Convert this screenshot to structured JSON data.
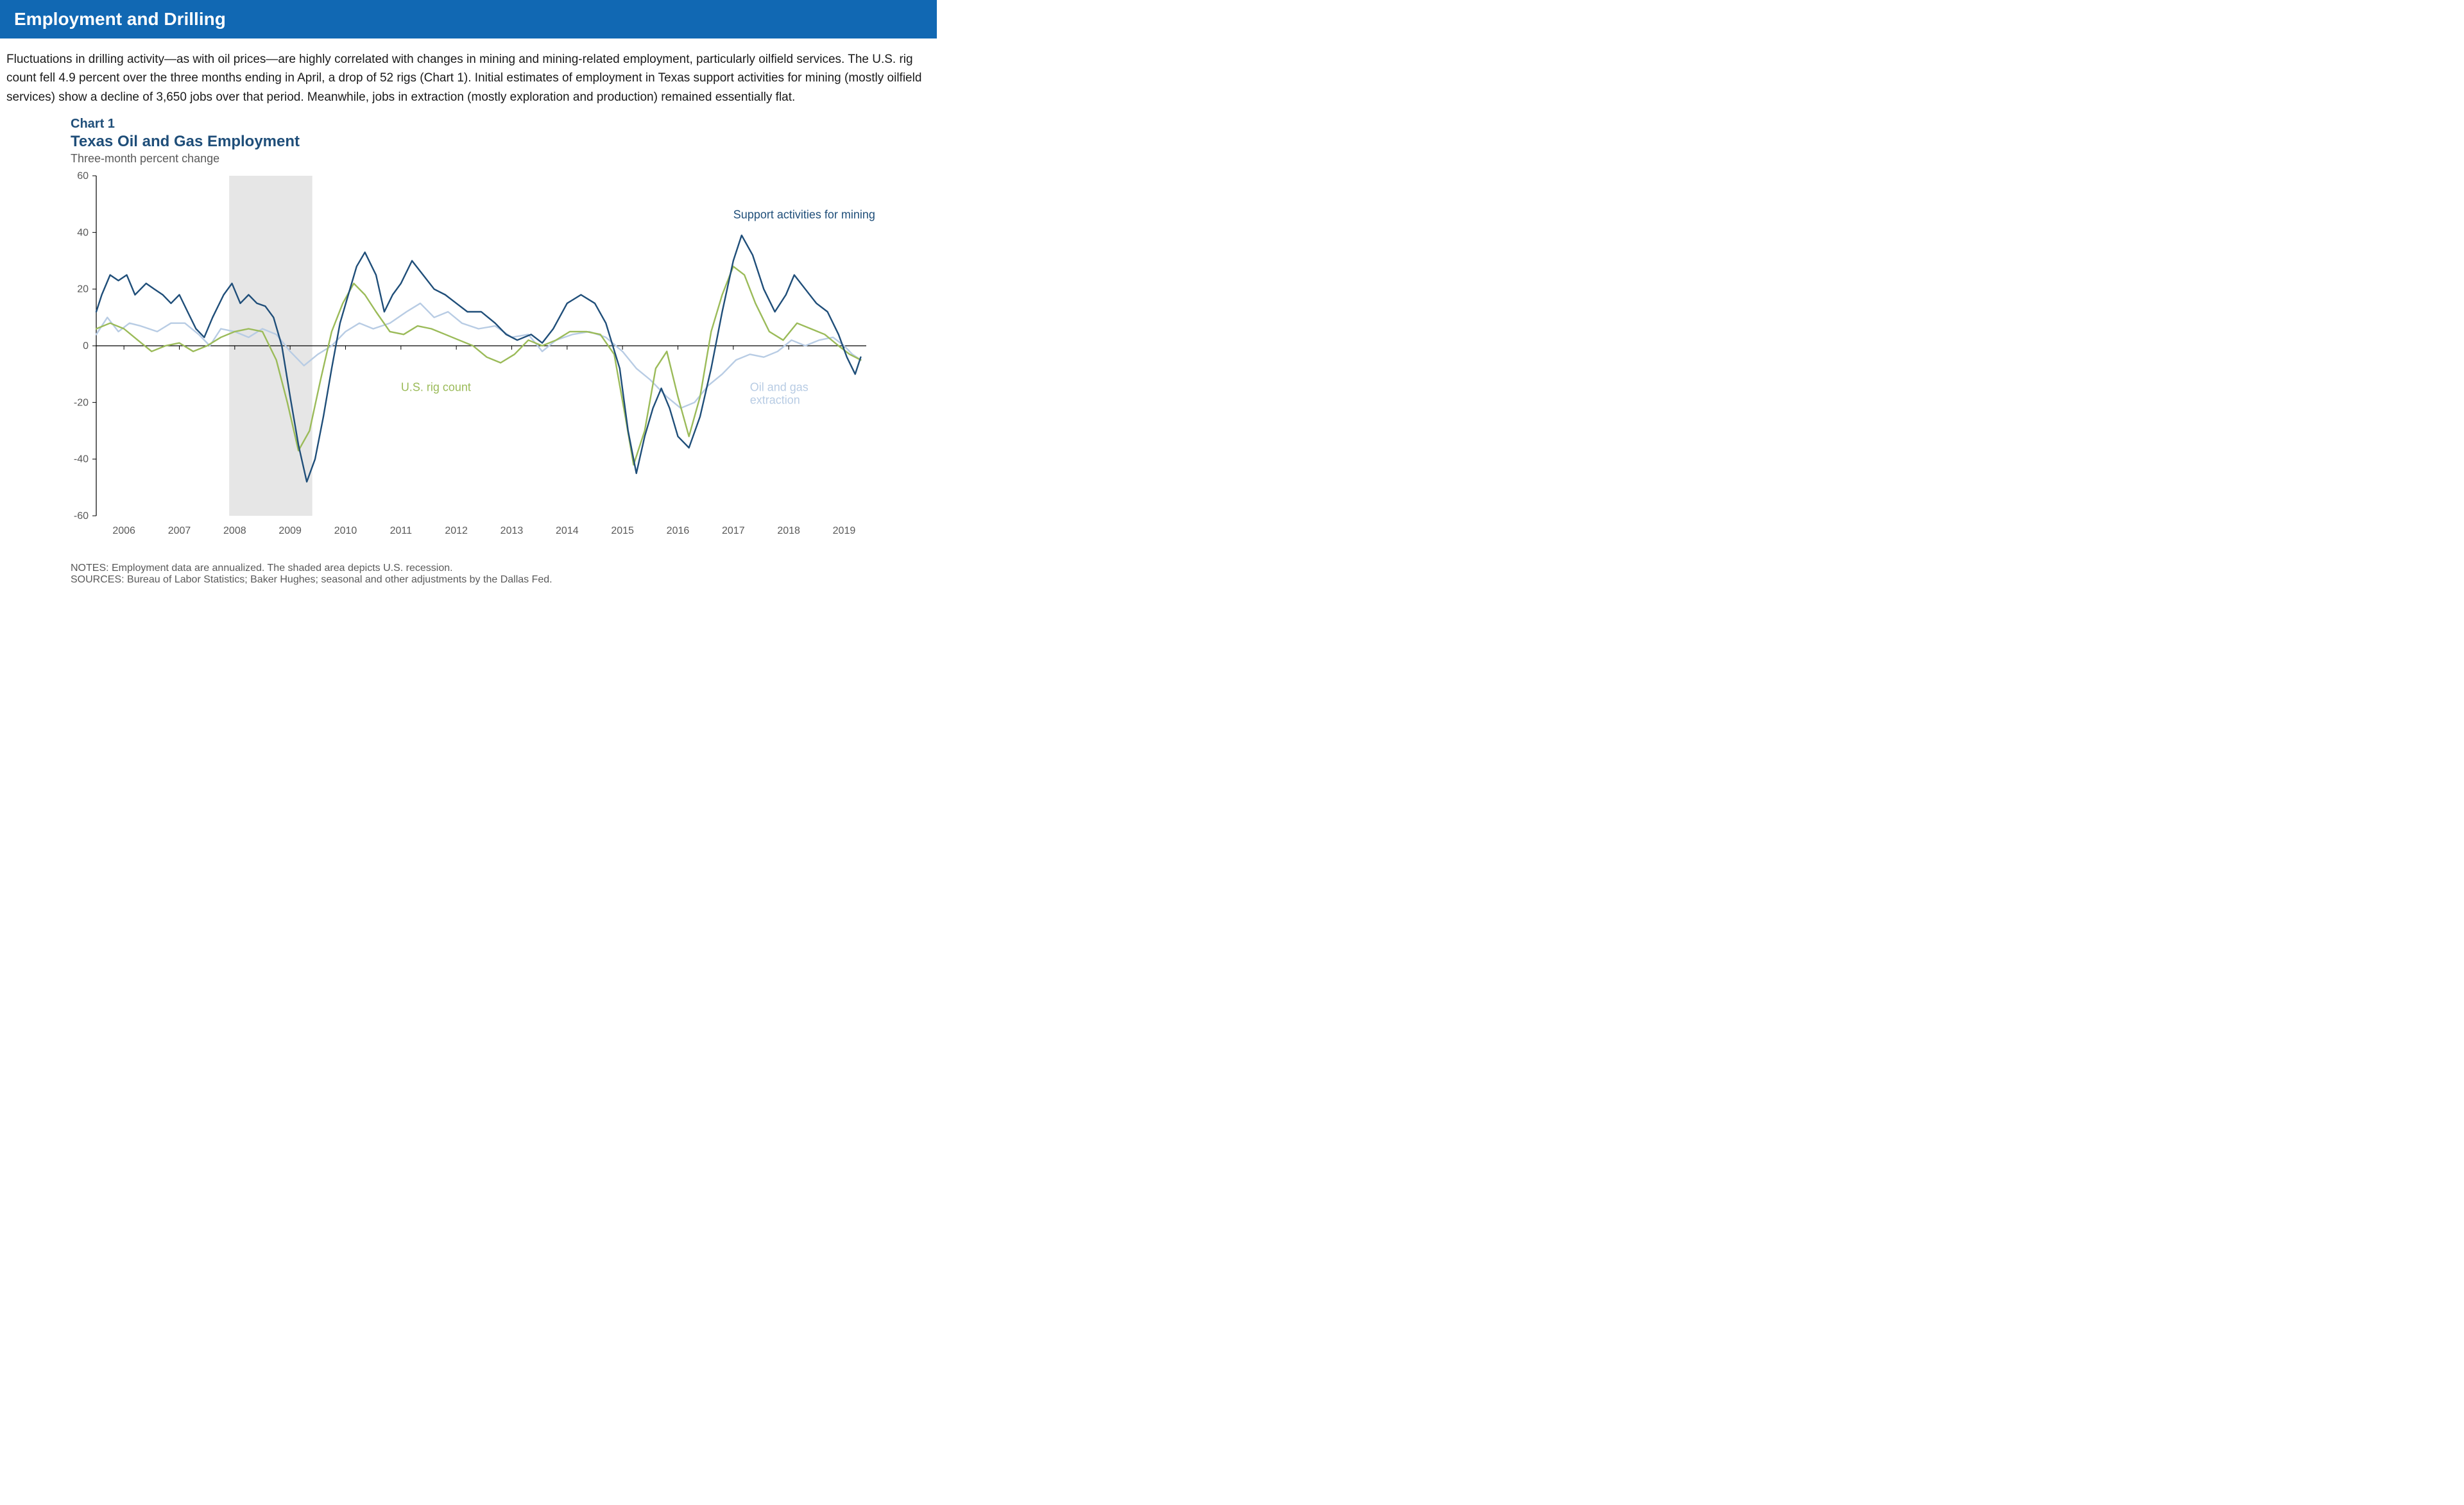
{
  "banner": {
    "title": "Employment and Drilling"
  },
  "paragraph": "Fluctuations in drilling activity—as with oil prices—are highly correlated with changes in mining and mining-related employment, particularly oilfield services. The U.S. rig count fell 4.9 percent over the three months ending in April, a drop of 52 rigs (Chart 1). Initial estimates of employment in Texas support activities for mining (mostly oilfield services) show a decline of 3,650 jobs over that period. Meanwhile, jobs in extraction (mostly exploration and production) remained essentially flat.",
  "chart": {
    "label": "Chart 1",
    "title": "Texas Oil and Gas Employment",
    "subtitle": "Three-month  percent  change",
    "type": "line",
    "background_color": "#ffffff",
    "axis_color": "#000000",
    "tick_font_size": 16,
    "tick_color": "#595959",
    "ylim": [
      -60,
      60
    ],
    "ytick_step": 20,
    "yticks": [
      -60,
      -40,
      -20,
      0,
      20,
      40,
      60
    ],
    "x_start": 2005.5,
    "x_end": 2019.4,
    "xticks": [
      2006,
      2007,
      2008,
      2009,
      2010,
      2011,
      2012,
      2013,
      2014,
      2015,
      2016,
      2017,
      2018,
      2019
    ],
    "recession_band": {
      "start": 2007.9,
      "end": 2009.4,
      "color": "#e6e6e6"
    },
    "line_width": 2.4,
    "series": [
      {
        "name": "Support activities for mining",
        "color": "#1f4e79",
        "label_xy": [
          2017.0,
          45
        ],
        "data": [
          [
            2005.5,
            12
          ],
          [
            2005.6,
            18
          ],
          [
            2005.75,
            25
          ],
          [
            2005.9,
            23
          ],
          [
            2006.05,
            25
          ],
          [
            2006.2,
            18
          ],
          [
            2006.4,
            22
          ],
          [
            2006.55,
            20
          ],
          [
            2006.7,
            18
          ],
          [
            2006.85,
            15
          ],
          [
            2007.0,
            18
          ],
          [
            2007.15,
            12
          ],
          [
            2007.3,
            6
          ],
          [
            2007.45,
            3
          ],
          [
            2007.6,
            10
          ],
          [
            2007.8,
            18
          ],
          [
            2007.95,
            22
          ],
          [
            2008.1,
            15
          ],
          [
            2008.25,
            18
          ],
          [
            2008.4,
            15
          ],
          [
            2008.55,
            14
          ],
          [
            2008.7,
            10
          ],
          [
            2008.85,
            0
          ],
          [
            2009.0,
            -18
          ],
          [
            2009.15,
            -35
          ],
          [
            2009.3,
            -48
          ],
          [
            2009.45,
            -40
          ],
          [
            2009.6,
            -25
          ],
          [
            2009.75,
            -8
          ],
          [
            2009.9,
            8
          ],
          [
            2010.05,
            18
          ],
          [
            2010.2,
            28
          ],
          [
            2010.35,
            33
          ],
          [
            2010.55,
            25
          ],
          [
            2010.7,
            12
          ],
          [
            2010.85,
            18
          ],
          [
            2011.0,
            22
          ],
          [
            2011.2,
            30
          ],
          [
            2011.4,
            25
          ],
          [
            2011.6,
            20
          ],
          [
            2011.8,
            18
          ],
          [
            2012.0,
            15
          ],
          [
            2012.2,
            12
          ],
          [
            2012.45,
            12
          ],
          [
            2012.7,
            8
          ],
          [
            2012.9,
            4
          ],
          [
            2013.1,
            2
          ],
          [
            2013.35,
            4
          ],
          [
            2013.55,
            1
          ],
          [
            2013.75,
            6
          ],
          [
            2014.0,
            15
          ],
          [
            2014.25,
            18
          ],
          [
            2014.5,
            15
          ],
          [
            2014.7,
            8
          ],
          [
            2014.95,
            -8
          ],
          [
            2015.1,
            -30
          ],
          [
            2015.25,
            -45
          ],
          [
            2015.4,
            -32
          ],
          [
            2015.55,
            -22
          ],
          [
            2015.7,
            -15
          ],
          [
            2015.85,
            -22
          ],
          [
            2016.0,
            -32
          ],
          [
            2016.2,
            -36
          ],
          [
            2016.4,
            -25
          ],
          [
            2016.6,
            -8
          ],
          [
            2016.8,
            12
          ],
          [
            2017.0,
            30
          ],
          [
            2017.15,
            39
          ],
          [
            2017.35,
            32
          ],
          [
            2017.55,
            20
          ],
          [
            2017.75,
            12
          ],
          [
            2017.95,
            18
          ],
          [
            2018.1,
            25
          ],
          [
            2018.3,
            20
          ],
          [
            2018.5,
            15
          ],
          [
            2018.7,
            12
          ],
          [
            2018.9,
            4
          ],
          [
            2019.05,
            -4
          ],
          [
            2019.2,
            -10
          ],
          [
            2019.3,
            -4
          ]
        ]
      },
      {
        "name": "Oil and gas extraction",
        "color": "#b8cce4",
        "label_xy": [
          2017.3,
          -16
        ],
        "label_text2": "extraction",
        "data": [
          [
            2005.5,
            4
          ],
          [
            2005.7,
            10
          ],
          [
            2005.9,
            5
          ],
          [
            2006.1,
            8
          ],
          [
            2006.3,
            7
          ],
          [
            2006.6,
            5
          ],
          [
            2006.85,
            8
          ],
          [
            2007.1,
            8
          ],
          [
            2007.35,
            4
          ],
          [
            2007.55,
            0
          ],
          [
            2007.75,
            6
          ],
          [
            2008.0,
            5
          ],
          [
            2008.25,
            3
          ],
          [
            2008.5,
            6
          ],
          [
            2008.75,
            4
          ],
          [
            2009.0,
            -2
          ],
          [
            2009.25,
            -7
          ],
          [
            2009.5,
            -3
          ],
          [
            2009.75,
            0
          ],
          [
            2010.0,
            5
          ],
          [
            2010.25,
            8
          ],
          [
            2010.5,
            6
          ],
          [
            2010.8,
            8
          ],
          [
            2011.1,
            12
          ],
          [
            2011.35,
            15
          ],
          [
            2011.6,
            10
          ],
          [
            2011.85,
            12
          ],
          [
            2012.1,
            8
          ],
          [
            2012.4,
            6
          ],
          [
            2012.7,
            7
          ],
          [
            2013.0,
            3
          ],
          [
            2013.3,
            4
          ],
          [
            2013.55,
            -2
          ],
          [
            2013.8,
            2
          ],
          [
            2014.1,
            4
          ],
          [
            2014.4,
            5
          ],
          [
            2014.7,
            3
          ],
          [
            2015.0,
            -2
          ],
          [
            2015.25,
            -8
          ],
          [
            2015.5,
            -12
          ],
          [
            2015.8,
            -18
          ],
          [
            2016.05,
            -22
          ],
          [
            2016.3,
            -20
          ],
          [
            2016.55,
            -14
          ],
          [
            2016.8,
            -10
          ],
          [
            2017.05,
            -5
          ],
          [
            2017.3,
            -3
          ],
          [
            2017.55,
            -4
          ],
          [
            2017.8,
            -2
          ],
          [
            2018.05,
            2
          ],
          [
            2018.3,
            0
          ],
          [
            2018.55,
            2
          ],
          [
            2018.8,
            3
          ],
          [
            2019.0,
            0
          ],
          [
            2019.15,
            -3
          ],
          [
            2019.3,
            -5
          ]
        ]
      },
      {
        "name": "U.S. rig count",
        "color": "#9bbb59",
        "label_xy": [
          2011.0,
          -16
        ],
        "data": [
          [
            2005.5,
            6
          ],
          [
            2005.75,
            8
          ],
          [
            2006.0,
            6
          ],
          [
            2006.25,
            2
          ],
          [
            2006.5,
            -2
          ],
          [
            2006.75,
            0
          ],
          [
            2007.0,
            1
          ],
          [
            2007.25,
            -2
          ],
          [
            2007.5,
            0
          ],
          [
            2007.75,
            3
          ],
          [
            2008.0,
            5
          ],
          [
            2008.25,
            6
          ],
          [
            2008.5,
            5
          ],
          [
            2008.75,
            -5
          ],
          [
            2008.95,
            -20
          ],
          [
            2009.15,
            -37
          ],
          [
            2009.35,
            -30
          ],
          [
            2009.55,
            -12
          ],
          [
            2009.75,
            5
          ],
          [
            2009.95,
            15
          ],
          [
            2010.15,
            22
          ],
          [
            2010.35,
            18
          ],
          [
            2010.55,
            12
          ],
          [
            2010.8,
            5
          ],
          [
            2011.05,
            4
          ],
          [
            2011.3,
            7
          ],
          [
            2011.55,
            6
          ],
          [
            2011.8,
            4
          ],
          [
            2012.05,
            2
          ],
          [
            2012.3,
            0
          ],
          [
            2012.55,
            -4
          ],
          [
            2012.8,
            -6
          ],
          [
            2013.05,
            -3
          ],
          [
            2013.3,
            2
          ],
          [
            2013.55,
            0
          ],
          [
            2013.8,
            2
          ],
          [
            2014.05,
            5
          ],
          [
            2014.35,
            5
          ],
          [
            2014.6,
            4
          ],
          [
            2014.85,
            -3
          ],
          [
            2015.05,
            -25
          ],
          [
            2015.2,
            -42
          ],
          [
            2015.4,
            -30
          ],
          [
            2015.6,
            -8
          ],
          [
            2015.8,
            -2
          ],
          [
            2016.0,
            -18
          ],
          [
            2016.2,
            -32
          ],
          [
            2016.4,
            -18
          ],
          [
            2016.6,
            5
          ],
          [
            2016.8,
            18
          ],
          [
            2017.0,
            28
          ],
          [
            2017.2,
            25
          ],
          [
            2017.4,
            15
          ],
          [
            2017.65,
            5
          ],
          [
            2017.9,
            2
          ],
          [
            2018.15,
            8
          ],
          [
            2018.4,
            6
          ],
          [
            2018.65,
            4
          ],
          [
            2018.9,
            0
          ],
          [
            2019.1,
            -3
          ],
          [
            2019.3,
            -5
          ]
        ]
      }
    ]
  },
  "notes": {
    "line1": "NOTES: Employment data are annualized. The shaded area depicts U.S. recession.",
    "line2": "SOURCES: Bureau of Labor Statistics; Baker Hughes; seasonal and other adjustments by the Dallas Fed."
  }
}
